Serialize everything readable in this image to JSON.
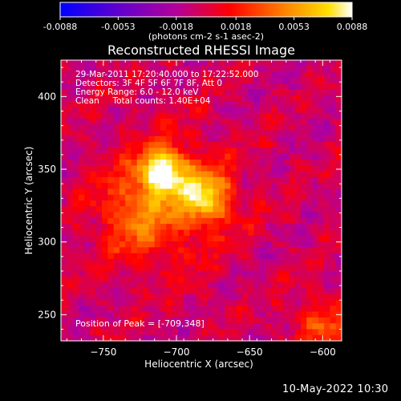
{
  "chart_data": {
    "type": "heatmap",
    "colorbar": {
      "min": -0.0088,
      "max": 0.0088,
      "tick_labels": [
        "-0.0088",
        "-0.0053",
        "-0.0018",
        "0.0018",
        "0.0053",
        "0.0088"
      ],
      "tick_values": [
        -0.0088,
        -0.0053,
        -0.0018,
        0.0018,
        0.0053,
        0.0088
      ],
      "unit_label": "(photons cm-2 s-1 asec-2)"
    },
    "title": "Reconstructed RHESSI Image",
    "annotations": [
      "29-Mar-2011 17:20:40.000 to 17:22:52.000",
      "Detectors: 3F 4F 5F 6F 7F 8F, Att 0",
      "Energy Range: 6.0 - 12.0 keV",
      "Clean     Total counts: 1.40E+04"
    ],
    "peak_label": "Position of Peak = [-709,348]",
    "peak": {
      "x": -709,
      "y": 348
    },
    "xlabel": "Heliocentric X (arcsec)",
    "ylabel": "Heliocentric Y (arcsec)",
    "xlim": [
      -779,
      -587
    ],
    "ylim": [
      232,
      425
    ],
    "x_ticks": [
      -750,
      -700,
      -650,
      -600
    ],
    "x_tick_labels": [
      "−750",
      "−700",
      "−650",
      "−600"
    ],
    "y_ticks": [
      250,
      300,
      350,
      400
    ],
    "y_tick_labels": [
      "250",
      "300",
      "350",
      "400"
    ],
    "sources": [
      {
        "x": -709,
        "y": 348,
        "value": 0.0088
      },
      {
        "x": -680,
        "y": 331,
        "value": 0.0068
      },
      {
        "x": -728,
        "y": 319,
        "value": 0.0036
      },
      {
        "x": -600,
        "y": 244,
        "value": 0.0035
      }
    ],
    "colormap": [
      "#0000ff",
      "#6a00c8",
      "#b4009a",
      "#ff0000",
      "#ff7a00",
      "#ffd600",
      "#ffffff"
    ]
  },
  "footer": {
    "timestamp": "10-May-2022 10:30"
  }
}
